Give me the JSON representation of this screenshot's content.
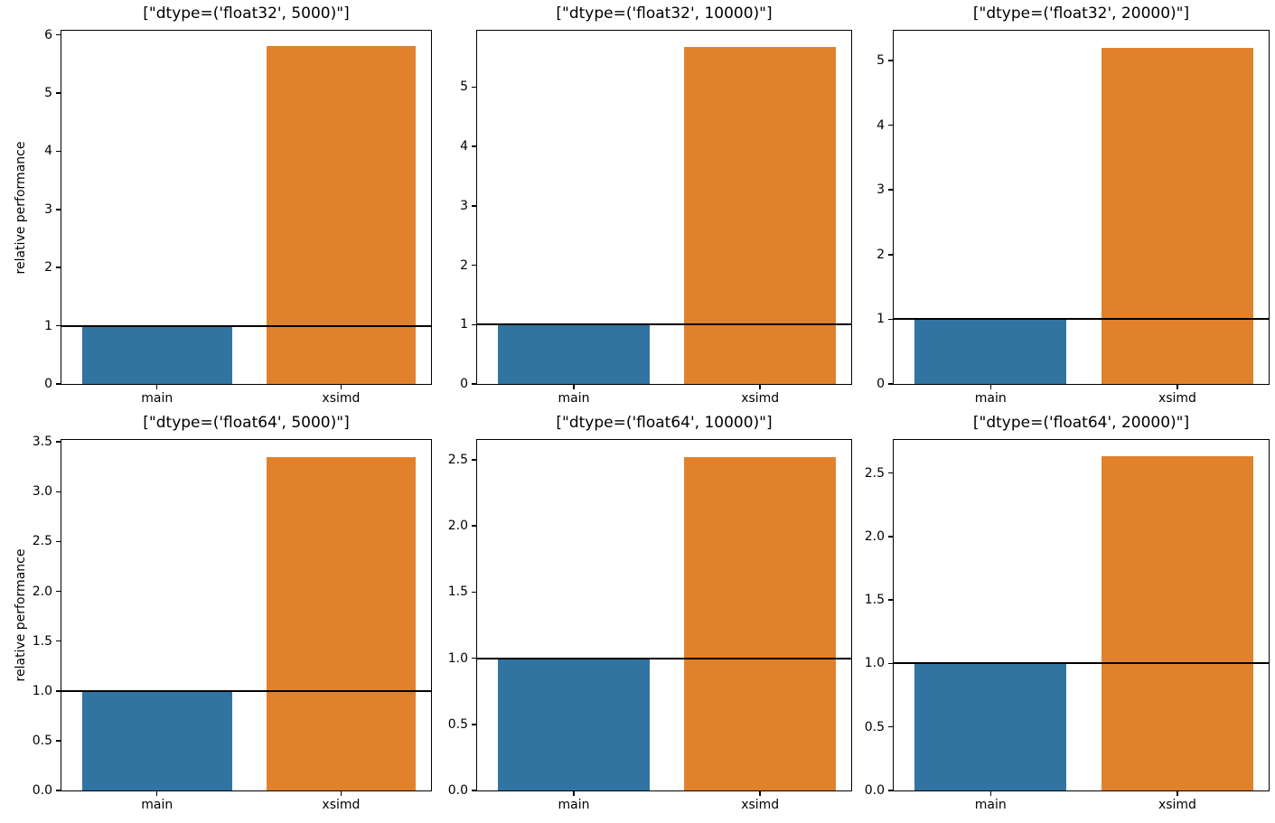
{
  "figure": {
    "background": "#ffffff",
    "rows": 2,
    "cols": 3
  },
  "palette": {
    "main": "#3274a1",
    "xsimd": "#e1812c",
    "reference_line": "#000000",
    "axis": "#000000"
  },
  "chart_data": [
    {
      "type": "bar",
      "title": "[\"dtype=('float32', 5000)\"]",
      "categories": [
        "main",
        "xsimd"
      ],
      "values": [
        1.0,
        5.8
      ],
      "ylabel": "relative performance",
      "xlabel": "",
      "ylim": [
        0,
        6.07
      ],
      "yticks": [
        0,
        1,
        2,
        3,
        4,
        5,
        6
      ],
      "ytick_labels": [
        "0",
        "1",
        "2",
        "3",
        "4",
        "5",
        "6"
      ],
      "reference_line": 1.0,
      "grid": false,
      "legend": false
    },
    {
      "type": "bar",
      "title": "[\"dtype=('float32', 10000)\"]",
      "categories": [
        "main",
        "xsimd"
      ],
      "values": [
        1.0,
        5.67
      ],
      "ylabel": "",
      "xlabel": "",
      "ylim": [
        0,
        5.95
      ],
      "yticks": [
        0,
        1,
        2,
        3,
        4,
        5
      ],
      "ytick_labels": [
        "0",
        "1",
        "2",
        "3",
        "4",
        "5"
      ],
      "reference_line": 1.0,
      "grid": false,
      "legend": false
    },
    {
      "type": "bar",
      "title": "[\"dtype=('float32', 20000)\"]",
      "categories": [
        "main",
        "xsimd"
      ],
      "values": [
        1.0,
        5.2
      ],
      "ylabel": "",
      "xlabel": "",
      "ylim": [
        0,
        5.46
      ],
      "yticks": [
        0,
        1,
        2,
        3,
        4,
        5
      ],
      "ytick_labels": [
        "0",
        "1",
        "2",
        "3",
        "4",
        "5"
      ],
      "reference_line": 1.0,
      "grid": false,
      "legend": false
    },
    {
      "type": "bar",
      "title": "[\"dtype=('float64', 5000)\"]",
      "categories": [
        "main",
        "xsimd"
      ],
      "values": [
        1.0,
        3.35
      ],
      "ylabel": "relative performance",
      "xlabel": "",
      "ylim": [
        0,
        3.52
      ],
      "yticks": [
        0,
        0.5,
        1.0,
        1.5,
        2.0,
        2.5,
        3.0,
        3.5
      ],
      "ytick_labels": [
        "0.0",
        "0.5",
        "1.0",
        "1.5",
        "2.0",
        "2.5",
        "3.0",
        "3.5"
      ],
      "reference_line": 1.0,
      "grid": false,
      "legend": false
    },
    {
      "type": "bar",
      "title": "[\"dtype=('float64', 10000)\"]",
      "categories": [
        "main",
        "xsimd"
      ],
      "values": [
        1.0,
        2.52
      ],
      "ylabel": "",
      "xlabel": "",
      "ylim": [
        0,
        2.65
      ],
      "yticks": [
        0,
        0.5,
        1.0,
        1.5,
        2.0,
        2.5
      ],
      "ytick_labels": [
        "0.0",
        "0.5",
        "1.0",
        "1.5",
        "2.0",
        "2.5"
      ],
      "reference_line": 1.0,
      "grid": false,
      "legend": false
    },
    {
      "type": "bar",
      "title": "[\"dtype=('float64', 20000)\"]",
      "categories": [
        "main",
        "xsimd"
      ],
      "values": [
        1.0,
        2.63
      ],
      "ylabel": "",
      "xlabel": "",
      "ylim": [
        0,
        2.76
      ],
      "yticks": [
        0,
        0.5,
        1.0,
        1.5,
        2.0,
        2.5
      ],
      "ytick_labels": [
        "0.0",
        "0.5",
        "1.0",
        "1.5",
        "2.0",
        "2.5"
      ],
      "reference_line": 1.0,
      "grid": false,
      "legend": false
    }
  ]
}
